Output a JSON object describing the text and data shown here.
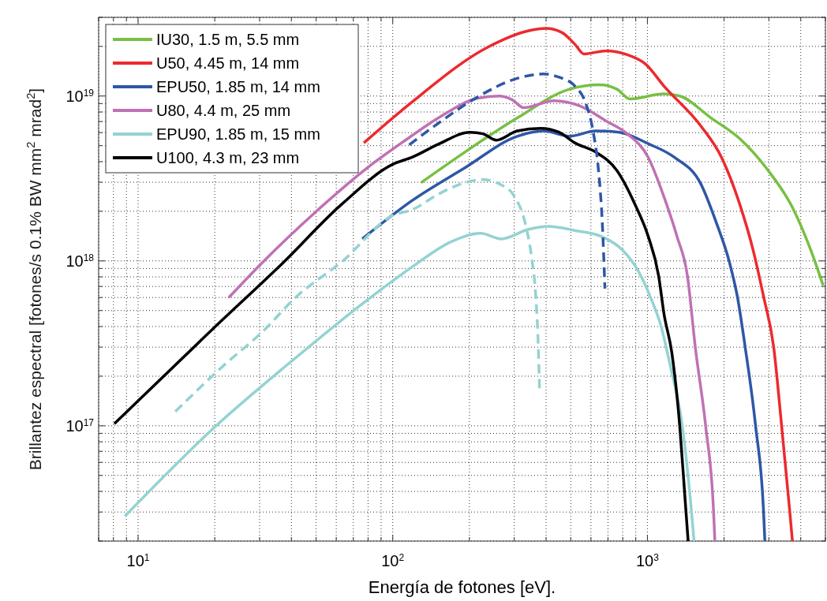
{
  "chart_data": {
    "type": "line",
    "xlabel": "Energía de fotones [eV].",
    "ylabel": "Brillantez espectral [fotones/s 0.1% BW mm$^{2}$ mrad$^{2}$]",
    "log": "xy",
    "grid": true,
    "legend": "top left",
    "xlim": [
      7,
      5000
    ],
    "ylim": [
      2e+16,
      3e+19
    ],
    "xticks": [
      {
        "value": 7,
        "label": null
      },
      {
        "value": 8,
        "label": null
      },
      {
        "value": 9,
        "label": null
      },
      {
        "value": 10,
        "label": "10$^{1}$"
      },
      {
        "value": 20,
        "label": null
      },
      {
        "value": 30,
        "label": null
      },
      {
        "value": 40,
        "label": null
      },
      {
        "value": 50,
        "label": null
      },
      {
        "value": 60,
        "label": null
      },
      {
        "value": 70,
        "label": null
      },
      {
        "value": 80,
        "label": null
      },
      {
        "value": 90,
        "label": null
      },
      {
        "value": 100,
        "label": "10$^{2}$"
      },
      {
        "value": 200,
        "label": null
      },
      {
        "value": 300,
        "label": null
      },
      {
        "value": 400,
        "label": null
      },
      {
        "value": 500,
        "label": null
      },
      {
        "value": 600,
        "label": null
      },
      {
        "value": 700,
        "label": null
      },
      {
        "value": 800,
        "label": null
      },
      {
        "value": 900,
        "label": null
      },
      {
        "value": 1000,
        "label": "10$^{3}$"
      },
      {
        "value": 2000,
        "label": null
      },
      {
        "value": 3000,
        "label": null
      },
      {
        "value": 4000,
        "label": null
      },
      {
        "value": 5000,
        "label": null
      }
    ],
    "yticks": [
      {
        "value": 2e+16,
        "label": null
      },
      {
        "value": 3e+16,
        "label": null
      },
      {
        "value": 4e+16,
        "label": null
      },
      {
        "value": 5e+16,
        "label": null
      },
      {
        "value": 6e+16,
        "label": null
      },
      {
        "value": 7e+16,
        "label": null
      },
      {
        "value": 8e+16,
        "label": null
      },
      {
        "value": 9e+16,
        "label": null
      },
      {
        "value": 1e+17,
        "label": "10$^{17}$"
      },
      {
        "value": 2e+17,
        "label": null
      },
      {
        "value": 3e+17,
        "label": null
      },
      {
        "value": 4e+17,
        "label": null
      },
      {
        "value": 5e+17,
        "label": null
      },
      {
        "value": 6e+17,
        "label": null
      },
      {
        "value": 7e+17,
        "label": null
      },
      {
        "value": 8e+17,
        "label": null
      },
      {
        "value": 9e+17,
        "label": null
      },
      {
        "value": 1e+18,
        "label": "10$^{18}$"
      },
      {
        "value": 2e+18,
        "label": null
      },
      {
        "value": 3e+18,
        "label": null
      },
      {
        "value": 4e+18,
        "label": null
      },
      {
        "value": 5e+18,
        "label": null
      },
      {
        "value": 6e+18,
        "label": null
      },
      {
        "value": 7e+18,
        "label": null
      },
      {
        "value": 8e+18,
        "label": null
      },
      {
        "value": 9e+18,
        "label": null
      },
      {
        "value": 1e+19,
        "label": "10$^{19}$"
      },
      {
        "value": 2e+19,
        "label": null
      },
      {
        "value": 3e+19,
        "label": null
      }
    ],
    "series": [
      {
        "name": "IU30, 1.5 m, 5.5 mm",
        "color": "#77c043",
        "line_style": "solid",
        "x": [
          129,
          192,
          308,
          494,
          643,
          759,
          855,
          1161,
          1340,
          1778,
          2308,
          2924,
          3710,
          4375,
          4900
        ],
        "values": [
          2.98e+18,
          4.57e+18,
          7.36e+18,
          1.1e+19,
          1.17e+19,
          1.1e+19,
          9.6e+18,
          1.03e+19,
          1e+19,
          7.36e+18,
          5.5e+18,
          3.67e+18,
          2.11e+18,
          1.17e+18,
          7.1e+17
        ]
      },
      {
        "name": "U50, 4.45 m, 14 mm",
        "color": "#ec2a2f",
        "line_style": "solid",
        "x": [
          77,
          119,
          238,
          339,
          400,
          461,
          519,
          563,
          689,
          833,
          984,
          1161,
          1619,
          1954,
          2308,
          2598,
          2857,
          3133,
          3367,
          3620,
          3710
        ],
        "values": [
          5.2e+18,
          9.2e+18,
          1.99e+19,
          2.48e+19,
          2.57e+19,
          2.43e+19,
          2.06e+19,
          1.8e+19,
          1.88e+19,
          1.78e+19,
          1.56e+19,
          1.15e+19,
          6.6e+18,
          4.25e+18,
          2.19e+18,
          1.17e+18,
          6.1e+17,
          2.99e+17,
          9.9e+16,
          3.05e+16,
          2e+16
        ]
      },
      {
        "name": "EPU50, 1.85 m, 14 mm",
        "color": "#2e57a7",
        "line_style": "solid",
        "x": [
          75.9,
          119,
          192,
          308,
          391,
          494,
          627,
          776,
          1007,
          1276,
          1619,
          1866,
          2100,
          2254,
          2421,
          2661,
          2857,
          2892
        ],
        "values": [
          1.36e+18,
          2.32e+18,
          3.67e+18,
          5.7e+18,
          6.14e+18,
          5.7e+18,
          6.14e+18,
          6.03e+18,
          5.14e+18,
          4.25e+18,
          2.94e+18,
          1.7e+18,
          9.8e+17,
          6.1e+17,
          2.99e+17,
          9.9e+16,
          3.05e+16,
          2e+16
        ]
      },
      {
        "name": "U80, 4.4 m, 25 mm",
        "color": "#c071b4",
        "line_style": "solid",
        "x": [
          22.7,
          30.8,
          49.4,
          79.4,
          118,
          151,
          216,
          261,
          294,
          327,
          430,
          544,
          689,
          833,
          1007,
          1161,
          1306,
          1436,
          1542,
          1694,
          1818,
          1840
        ],
        "values": [
          6e+17,
          9.8e+17,
          1.96e+18,
          3.67e+18,
          5.7e+18,
          7.36e+18,
          9.7e+18,
          1e+19,
          9.5e+18,
          8.5e+18,
          9.36e+18,
          8.7e+18,
          7.05e+18,
          5.9e+18,
          4.25e+18,
          2.45e+18,
          1.41e+18,
          8.1e+17,
          2.99e+17,
          9.9e+16,
          3.05e+16,
          2e+16
        ]
      },
      {
        "name": "EPU90, 1.85 m, 15 mm",
        "color": "#93d3d1",
        "line_style": "solid",
        "x": [
          8.87,
          20.1,
          39.1,
          79.4,
          118,
          170,
          221,
          267,
          339,
          409,
          519,
          658,
          795,
          916,
          1031,
          1132,
          1230,
          1372,
          1472,
          1525
        ],
        "values": [
          2.83e+16,
          9.9e+16,
          2.39e+17,
          5.8e+17,
          9.1e+17,
          1.31e+18,
          1.47e+18,
          1.36e+18,
          1.55e+18,
          1.62e+18,
          1.53e+18,
          1.41e+18,
          1.17e+18,
          8.8e+17,
          5.96e+17,
          4e+17,
          2.31e+17,
          9.9e+16,
          3.68e+16,
          2e+16
        ]
      },
      {
        "name": "U100, 4.3 m, 23 mm",
        "color": "#000000",
        "line_style": "solid",
        "x": [
          8.07,
          20.1,
          37.2,
          62.7,
          101,
          119,
          151,
          201,
          226,
          255,
          308,
          382,
          450,
          519,
          627,
          759,
          895,
          1007,
          1107,
          1161,
          1247,
          1340,
          1404,
          1445
        ],
        "values": [
          1.03e+17,
          4e+17,
          9.8e+17,
          2.19e+18,
          3.88e+18,
          4.25e+18,
          5.1e+18,
          6.03e+18,
          5.9e+18,
          5.4e+18,
          6.14e+18,
          6.37e+18,
          6.03e+18,
          5.2e+18,
          4.57e+18,
          3.53e+18,
          2.19e+18,
          1.41e+18,
          8.1e+17,
          4.8e+17,
          2.77e+17,
          9.9e+16,
          3.68e+16,
          2e+16
        ]
      },
      {
        "color": "#2e57a7",
        "line_style": "dashed",
        "x": [
          116,
          151,
          216,
          308,
          391,
          450,
          519,
          570,
          612,
          643,
          665,
          681
        ],
        "values": [
          5.06e+18,
          6.84e+18,
          9.9e+18,
          1.28e+19,
          1.36e+19,
          1.3e+19,
          1.15e+19,
          9.2e+18,
          6.1e+18,
          3.5e+18,
          1.7e+18,
          6.8e+17
        ]
      },
      {
        "color": "#93d3d1",
        "line_style": "dashed",
        "x": [
          14.0,
          21.6,
          30.8,
          42,
          62.7,
          101,
          119,
          151,
          192,
          226,
          267,
          301,
          331,
          351,
          364,
          372,
          377
        ],
        "values": [
          1.22e+17,
          2.31e+17,
          3.72e+17,
          6.1e+17,
          9.8e+17,
          1.9e+18,
          2.04e+18,
          2.54e+18,
          2.98e+18,
          3.11e+18,
          2.89e+18,
          2.45e+18,
          1.7e+18,
          1.05e+18,
          6.3e+17,
          3.33e+17,
          1.69e+17
        ]
      }
    ]
  }
}
